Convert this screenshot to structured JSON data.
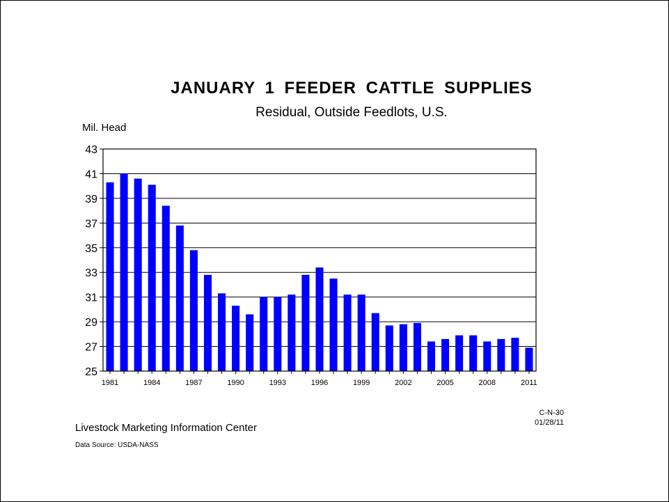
{
  "chart_data": {
    "type": "bar",
    "title": "JANUARY 1 FEEDER CATTLE SUPPLIES",
    "subtitle": "Residual, Outside Feedlots, U.S.",
    "ylabel": "Mil. Head",
    "xlabel": "",
    "ylim": [
      25,
      43
    ],
    "yticks": [
      25,
      27,
      29,
      31,
      33,
      35,
      37,
      39,
      41,
      43
    ],
    "grid": true,
    "bar_color": "#0000ff",
    "categories": [
      1981,
      1982,
      1983,
      1984,
      1985,
      1986,
      1987,
      1988,
      1989,
      1990,
      1991,
      1992,
      1993,
      1994,
      1995,
      1996,
      1997,
      1998,
      1999,
      2000,
      2001,
      2002,
      2003,
      2004,
      2005,
      2006,
      2007,
      2008,
      2009,
      2010,
      2011
    ],
    "xtick_labels": [
      "1981",
      "1984",
      "1987",
      "1990",
      "1993",
      "1996",
      "1999",
      "2002",
      "2005",
      "2008",
      "2011"
    ],
    "values": [
      40.3,
      41.0,
      40.6,
      40.1,
      38.4,
      36.8,
      34.8,
      32.8,
      31.3,
      30.3,
      29.6,
      31.0,
      31.0,
      31.2,
      32.8,
      33.4,
      32.5,
      31.2,
      31.2,
      29.7,
      28.7,
      28.8,
      28.9,
      27.4,
      27.6,
      27.9,
      27.9,
      27.4,
      27.6,
      27.7,
      26.9
    ]
  },
  "footer": {
    "code": "C-N-30",
    "date": "01/28/11",
    "organization": "Livestock Marketing Information Center",
    "source": "Data Source:  USDA-NASS"
  }
}
